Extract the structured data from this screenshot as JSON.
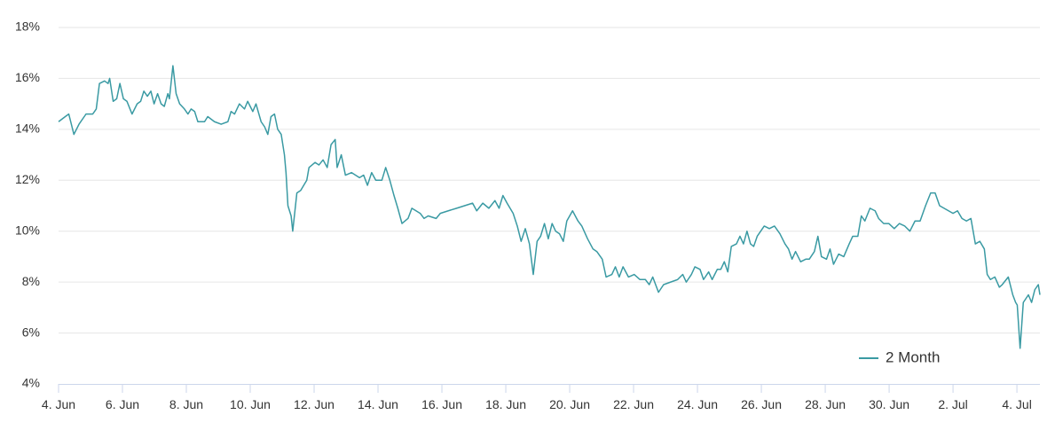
{
  "chart_data": {
    "type": "line",
    "xlim": [
      0,
      30.72
    ],
    "xticks": [
      {
        "value": 0,
        "label": "4. Jun"
      },
      {
        "value": 2,
        "label": "6. Jun"
      },
      {
        "value": 4,
        "label": "8. Jun"
      },
      {
        "value": 6,
        "label": "10. Jun"
      },
      {
        "value": 8,
        "label": "12. Jun"
      },
      {
        "value": 10,
        "label": "14. Jun"
      },
      {
        "value": 12,
        "label": "16. Jun"
      },
      {
        "value": 14,
        "label": "18. Jun"
      },
      {
        "value": 16,
        "label": "20. Jun"
      },
      {
        "value": 18,
        "label": "22. Jun"
      },
      {
        "value": 20,
        "label": "24. Jun"
      },
      {
        "value": 22,
        "label": "26. Jun"
      },
      {
        "value": 24,
        "label": "28. Jun"
      },
      {
        "value": 26,
        "label": "30. Jun"
      },
      {
        "value": 28,
        "label": "2. Jul"
      },
      {
        "value": 30,
        "label": "4. Jul"
      }
    ],
    "ylim": [
      4,
      18
    ],
    "yticks": [
      {
        "value": 4,
        "label": "4%"
      },
      {
        "value": 6,
        "label": "6%"
      },
      {
        "value": 8,
        "label": "8%"
      },
      {
        "value": 10,
        "label": "10%"
      },
      {
        "value": 12,
        "label": "12%"
      },
      {
        "value": 14,
        "label": "14%"
      },
      {
        "value": 16,
        "label": "16%"
      },
      {
        "value": 18,
        "label": "18%"
      }
    ],
    "grid": true,
    "legend": "bottom-right",
    "x": [
      0,
      0.21,
      0.32,
      0.48,
      0.64,
      0.86,
      1.07,
      1.18,
      1.28,
      1.44,
      1.55,
      1.6,
      1.71,
      1.82,
      1.92,
      2.03,
      2.14,
      2.3,
      2.46,
      2.57,
      2.67,
      2.78,
      2.89,
      2.99,
      3.1,
      3.21,
      3.31,
      3.42,
      3.47,
      3.58,
      3.68,
      3.79,
      3.94,
      4.05,
      4.15,
      4.26,
      4.36,
      4.57,
      4.67,
      4.88,
      5.09,
      5.3,
      5.4,
      5.51,
      5.66,
      5.82,
      5.92,
      6.08,
      6.18,
      6.34,
      6.45,
      6.55,
      6.65,
      6.76,
      6.86,
      6.97,
      7.07,
      7.12,
      7.18,
      7.28,
      7.33,
      7.46,
      7.58,
      7.77,
      7.84,
      8.03,
      8.15,
      8.28,
      8.41,
      8.53,
      8.66,
      8.72,
      8.85,
      8.98,
      9.17,
      9.42,
      9.55,
      9.67,
      9.8,
      9.93,
      10.12,
      10.24,
      10.37,
      10.5,
      10.62,
      10.75,
      10.94,
      11.06,
      11.32,
      11.44,
      11.57,
      11.82,
      11.95,
      12.2,
      12.46,
      12.71,
      12.96,
      13.09,
      13.28,
      13.47,
      13.66,
      13.79,
      13.91,
      14.04,
      14.23,
      14.36,
      14.48,
      14.61,
      14.74,
      14.86,
      14.98,
      15.09,
      15.21,
      15.33,
      15.45,
      15.56,
      15.68,
      15.8,
      15.91,
      16.09,
      16.26,
      16.38,
      16.56,
      16.73,
      16.85,
      17.02,
      17.14,
      17.32,
      17.43,
      17.55,
      17.67,
      17.84,
      18.02,
      18.2,
      18.37,
      18.49,
      18.6,
      18.78,
      18.94,
      19.16,
      19.38,
      19.54,
      19.65,
      19.81,
      19.92,
      20.08,
      20.19,
      20.35,
      20.46,
      20.62,
      20.73,
      20.84,
      20.95,
      21.06,
      21.22,
      21.33,
      21.44,
      21.55,
      21.66,
      21.76,
      21.87,
      22.09,
      22.25,
      22.41,
      22.58,
      22.74,
      22.85,
      22.96,
      23.07,
      23.23,
      23.39,
      23.5,
      23.66,
      23.77,
      23.88,
      24.04,
      24.15,
      24.26,
      24.42,
      24.58,
      24.75,
      24.86,
      25.02,
      25.13,
      25.24,
      25.4,
      25.56,
      25.67,
      25.83,
      25.99,
      26.16,
      26.32,
      26.49,
      26.65,
      26.81,
      26.97,
      27.14,
      27.3,
      27.44,
      27.58,
      27.72,
      27.86,
      28.0,
      28.14,
      28.28,
      28.42,
      28.56,
      28.7,
      28.84,
      28.98,
      29.07,
      29.17,
      29.31,
      29.45,
      29.54,
      29.73,
      29.87,
      29.96,
      30.01,
      30.1,
      30.2,
      30.36,
      30.46,
      30.56,
      30.67,
      30.72
    ],
    "series": [
      {
        "name": "2 Month",
        "color": "#3a9aa3",
        "values": [
          14.3,
          14.5,
          14.6,
          13.8,
          14.2,
          14.6,
          14.6,
          14.8,
          15.8,
          15.9,
          15.8,
          16.0,
          15.1,
          15.2,
          15.8,
          15.2,
          15.1,
          14.6,
          15.0,
          15.1,
          15.5,
          15.3,
          15.5,
          15.0,
          15.4,
          15.0,
          14.9,
          15.4,
          15.2,
          16.5,
          15.4,
          15.0,
          14.8,
          14.6,
          14.8,
          14.7,
          14.3,
          14.3,
          14.5,
          14.3,
          14.2,
          14.3,
          14.7,
          14.6,
          15.0,
          14.8,
          15.1,
          14.7,
          15.0,
          14.3,
          14.1,
          13.8,
          14.5,
          14.6,
          14.0,
          13.8,
          13.0,
          12.3,
          11.0,
          10.6,
          10.0,
          11.5,
          11.6,
          12.0,
          12.5,
          12.7,
          12.6,
          12.8,
          12.5,
          13.4,
          13.6,
          12.5,
          13.0,
          12.2,
          12.3,
          12.1,
          12.2,
          11.8,
          12.3,
          12.0,
          12.0,
          12.5,
          12.0,
          11.4,
          10.9,
          10.3,
          10.5,
          10.9,
          10.7,
          10.5,
          10.6,
          10.5,
          10.7,
          10.8,
          10.9,
          11.0,
          11.1,
          10.8,
          11.1,
          10.9,
          11.2,
          10.9,
          11.4,
          11.1,
          10.7,
          10.2,
          9.6,
          10.1,
          9.5,
          8.3,
          9.6,
          9.8,
          10.3,
          9.7,
          10.3,
          10.0,
          9.9,
          9.6,
          10.4,
          10.8,
          10.4,
          10.2,
          9.7,
          9.3,
          9.2,
          8.9,
          8.2,
          8.3,
          8.6,
          8.2,
          8.6,
          8.2,
          8.3,
          8.1,
          8.1,
          7.9,
          8.2,
          7.6,
          7.9,
          8.0,
          8.1,
          8.3,
          8.0,
          8.3,
          8.6,
          8.5,
          8.1,
          8.4,
          8.1,
          8.5,
          8.5,
          8.8,
          8.4,
          9.4,
          9.5,
          9.8,
          9.5,
          10.0,
          9.5,
          9.4,
          9.8,
          10.2,
          10.1,
          10.2,
          9.9,
          9.5,
          9.3,
          8.9,
          9.2,
          8.8,
          8.9,
          8.9,
          9.2,
          9.8,
          9.0,
          8.9,
          9.3,
          8.7,
          9.1,
          9.0,
          9.5,
          9.8,
          9.8,
          10.6,
          10.4,
          10.9,
          10.8,
          10.5,
          10.3,
          10.3,
          10.1,
          10.3,
          10.2,
          10.0,
          10.4,
          10.4,
          11.0,
          11.5,
          11.5,
          11.0,
          10.9,
          10.8,
          10.7,
          10.8,
          10.5,
          10.4,
          10.5,
          9.5,
          9.6,
          9.3,
          8.3,
          8.1,
          8.2,
          7.8,
          7.9,
          8.2,
          7.5,
          7.2,
          7.1,
          5.4,
          7.2,
          7.5,
          7.2,
          7.7,
          7.9,
          7.5
        ]
      }
    ]
  }
}
